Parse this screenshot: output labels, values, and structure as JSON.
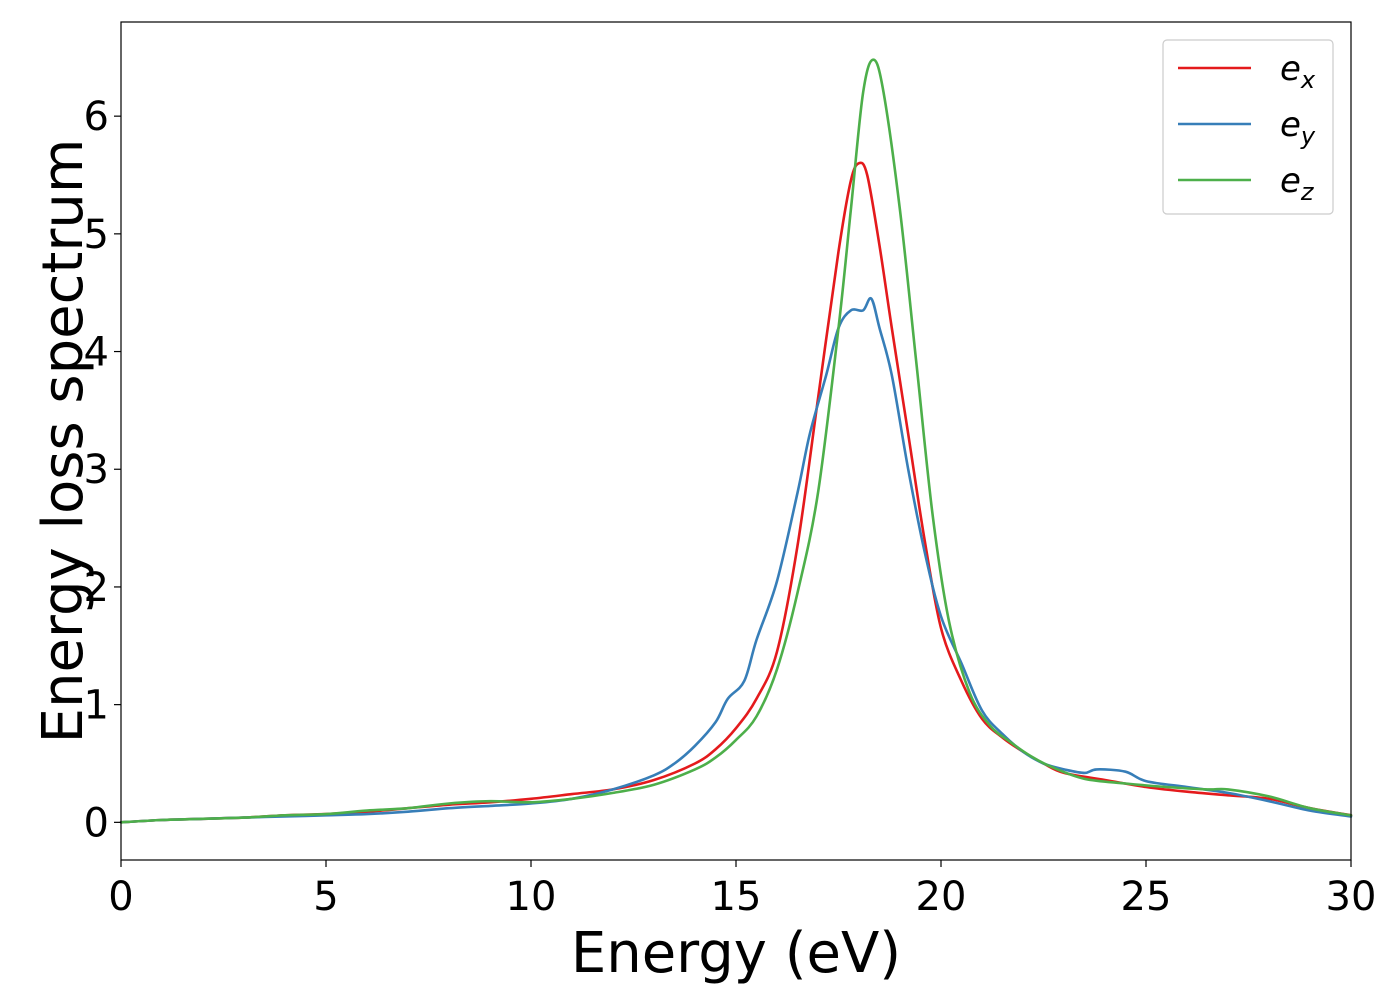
{
  "chart_data": {
    "type": "line",
    "title": "",
    "xlabel": "Energy (eV)",
    "ylabel": "Energy loss spectrum",
    "xlim": [
      0,
      30
    ],
    "ylim": [
      -0.32,
      6.8
    ],
    "xticks": [
      0,
      5,
      10,
      15,
      20,
      25,
      30
    ],
    "yticks": [
      0,
      1,
      2,
      3,
      4,
      5,
      6
    ],
    "grid": false,
    "legend": "top-right",
    "series": [
      {
        "name": "e",
        "subscript": "x",
        "color": "#e41a1c",
        "points": [
          [
            0,
            0.0
          ],
          [
            1,
            0.02
          ],
          [
            2,
            0.03
          ],
          [
            3,
            0.04
          ],
          [
            4,
            0.06
          ],
          [
            5,
            0.07
          ],
          [
            6,
            0.09
          ],
          [
            7,
            0.12
          ],
          [
            8,
            0.15
          ],
          [
            9,
            0.17
          ],
          [
            10,
            0.2
          ],
          [
            11,
            0.24
          ],
          [
            12,
            0.28
          ],
          [
            13,
            0.36
          ],
          [
            14,
            0.5
          ],
          [
            14.5,
            0.62
          ],
          [
            15,
            0.8
          ],
          [
            15.5,
            1.05
          ],
          [
            16,
            1.45
          ],
          [
            16.5,
            2.35
          ],
          [
            17,
            3.6
          ],
          [
            17.5,
            4.85
          ],
          [
            17.8,
            5.45
          ],
          [
            18,
            5.6
          ],
          [
            18.2,
            5.5
          ],
          [
            18.5,
            4.9
          ],
          [
            18.8,
            4.2
          ],
          [
            19.2,
            3.3
          ],
          [
            19.6,
            2.4
          ],
          [
            20,
            1.65
          ],
          [
            20.5,
            1.2
          ],
          [
            21,
            0.88
          ],
          [
            21.5,
            0.72
          ],
          [
            22,
            0.6
          ],
          [
            22.5,
            0.5
          ],
          [
            23,
            0.42
          ],
          [
            24,
            0.36
          ],
          [
            25,
            0.3
          ],
          [
            26,
            0.26
          ],
          [
            27,
            0.23
          ],
          [
            28,
            0.2
          ],
          [
            29,
            0.12
          ],
          [
            30,
            0.06
          ]
        ]
      },
      {
        "name": "e",
        "subscript": "y",
        "color": "#377eb8",
        "points": [
          [
            0,
            0.0
          ],
          [
            1,
            0.02
          ],
          [
            2,
            0.03
          ],
          [
            3,
            0.04
          ],
          [
            4,
            0.05
          ],
          [
            5,
            0.06
          ],
          [
            6,
            0.07
          ],
          [
            7,
            0.09
          ],
          [
            8,
            0.12
          ],
          [
            9,
            0.14
          ],
          [
            10,
            0.16
          ],
          [
            11,
            0.2
          ],
          [
            12,
            0.28
          ],
          [
            13,
            0.4
          ],
          [
            13.5,
            0.5
          ],
          [
            14,
            0.65
          ],
          [
            14.5,
            0.85
          ],
          [
            14.8,
            1.05
          ],
          [
            15.2,
            1.2
          ],
          [
            15.5,
            1.55
          ],
          [
            16,
            2.05
          ],
          [
            16.5,
            2.8
          ],
          [
            16.8,
            3.3
          ],
          [
            17.2,
            3.8
          ],
          [
            17.5,
            4.2
          ],
          [
            17.8,
            4.35
          ],
          [
            18.1,
            4.35
          ],
          [
            18.3,
            4.45
          ],
          [
            18.5,
            4.2
          ],
          [
            18.8,
            3.8
          ],
          [
            19.2,
            3.0
          ],
          [
            19.6,
            2.3
          ],
          [
            20,
            1.75
          ],
          [
            20.5,
            1.35
          ],
          [
            21,
            0.95
          ],
          [
            21.5,
            0.75
          ],
          [
            22,
            0.6
          ],
          [
            22.5,
            0.5
          ],
          [
            23,
            0.45
          ],
          [
            23.5,
            0.42
          ],
          [
            23.8,
            0.45
          ],
          [
            24.5,
            0.43
          ],
          [
            25,
            0.35
          ],
          [
            26,
            0.3
          ],
          [
            27,
            0.25
          ],
          [
            28,
            0.18
          ],
          [
            29,
            0.1
          ],
          [
            30,
            0.05
          ]
        ]
      },
      {
        "name": "e",
        "subscript": "z",
        "color": "#4daf4a",
        "points": [
          [
            0,
            0.0
          ],
          [
            1,
            0.02
          ],
          [
            2,
            0.03
          ],
          [
            3,
            0.04
          ],
          [
            4,
            0.06
          ],
          [
            5,
            0.07
          ],
          [
            6,
            0.1
          ],
          [
            7,
            0.12
          ],
          [
            8,
            0.16
          ],
          [
            9,
            0.18
          ],
          [
            10,
            0.17
          ],
          [
            11,
            0.2
          ],
          [
            12,
            0.25
          ],
          [
            13,
            0.32
          ],
          [
            14,
            0.45
          ],
          [
            14.5,
            0.55
          ],
          [
            15,
            0.7
          ],
          [
            15.5,
            0.9
          ],
          [
            16,
            1.3
          ],
          [
            16.5,
            1.95
          ],
          [
            17,
            2.8
          ],
          [
            17.5,
            4.2
          ],
          [
            17.8,
            5.2
          ],
          [
            18.1,
            6.2
          ],
          [
            18.35,
            6.48
          ],
          [
            18.6,
            6.2
          ],
          [
            19,
            5.2
          ],
          [
            19.4,
            3.9
          ],
          [
            19.8,
            2.6
          ],
          [
            20.2,
            1.7
          ],
          [
            20.7,
            1.1
          ],
          [
            21.2,
            0.82
          ],
          [
            21.7,
            0.68
          ],
          [
            22.2,
            0.56
          ],
          [
            22.7,
            0.47
          ],
          [
            23.5,
            0.37
          ],
          [
            24.5,
            0.33
          ],
          [
            25.5,
            0.3
          ],
          [
            26.5,
            0.28
          ],
          [
            27,
            0.28
          ],
          [
            28,
            0.22
          ],
          [
            29,
            0.12
          ],
          [
            30,
            0.06
          ]
        ]
      }
    ]
  }
}
